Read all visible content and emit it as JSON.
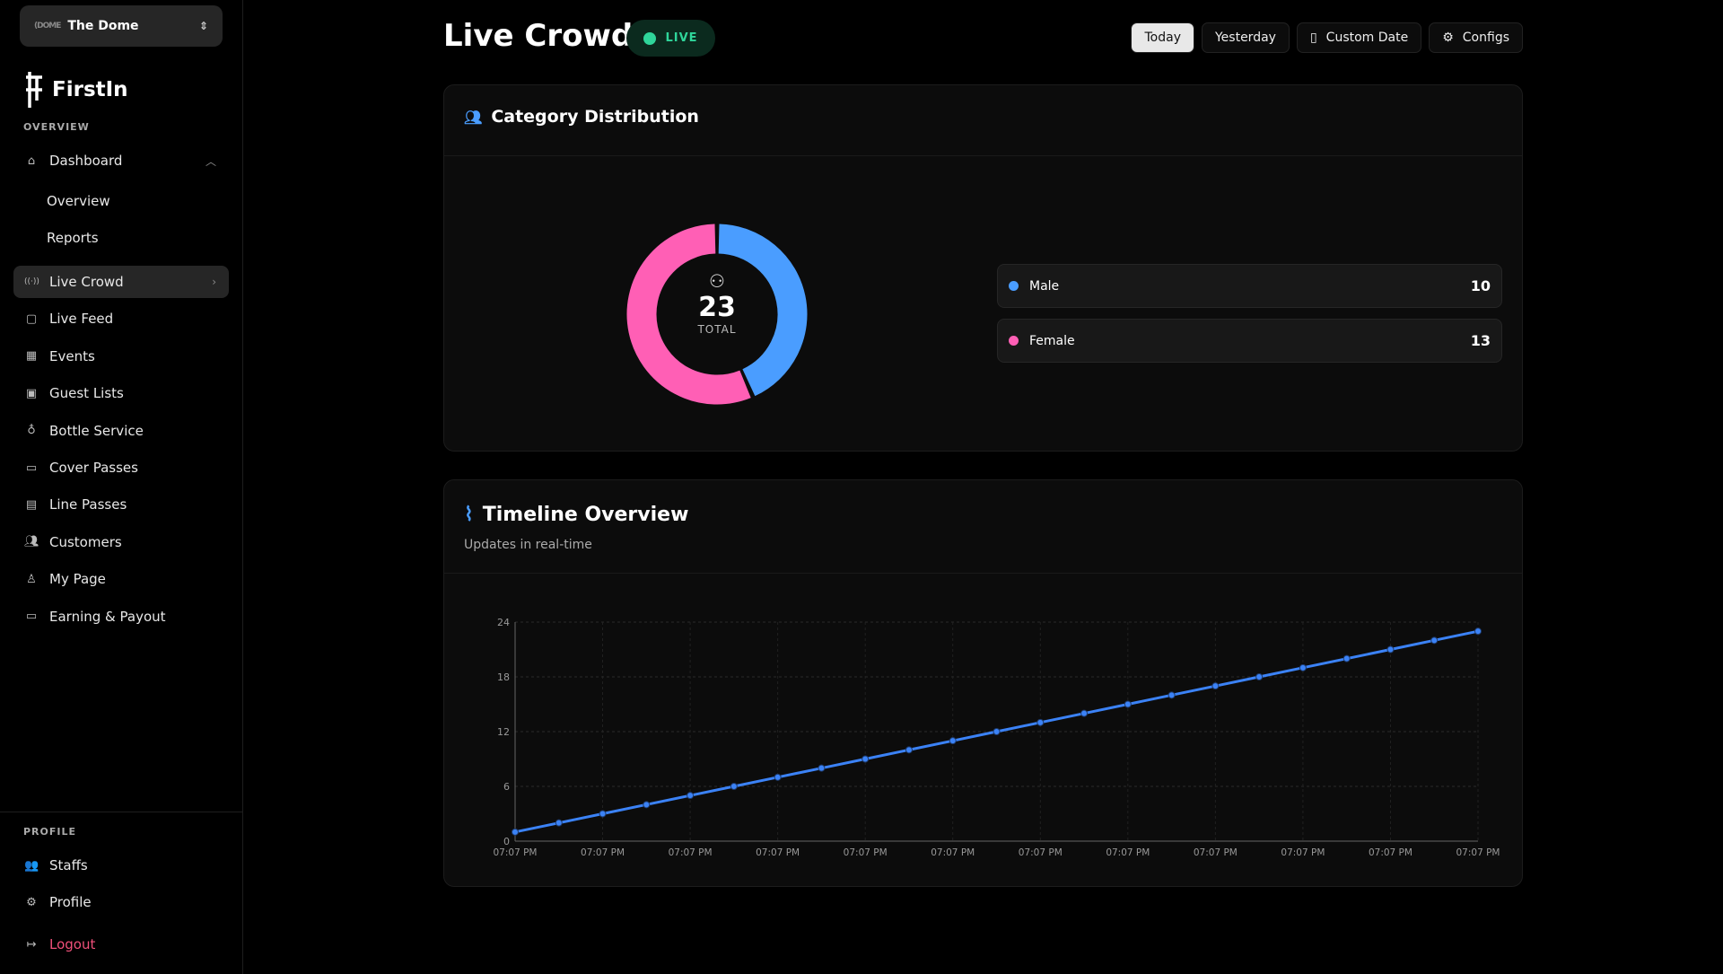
{
  "venue": {
    "logo": "(DOME",
    "name": "The Dome"
  },
  "brand": {
    "name": "FirstIn"
  },
  "sidebar": {
    "overview_label": "OVERVIEW",
    "dashboard": {
      "label": "Dashboard",
      "icon": "home-icon",
      "children": [
        "Overview",
        "Reports"
      ]
    },
    "items": [
      {
        "label": "Live Crowd",
        "icon": "broadcast-icon",
        "active": true
      },
      {
        "label": "Live Feed",
        "icon": "feed-icon"
      },
      {
        "label": "Events",
        "icon": "calendar-icon"
      },
      {
        "label": "Guest Lists",
        "icon": "contact-icon"
      },
      {
        "label": "Bottle Service",
        "icon": "bottle-icon"
      },
      {
        "label": "Cover Passes",
        "icon": "card-icon"
      },
      {
        "label": "Line Passes",
        "icon": "ticket-icon"
      },
      {
        "label": "Customers",
        "icon": "users-icon"
      },
      {
        "label": "My Page",
        "icon": "user-icon"
      },
      {
        "label": "Earning & Payout",
        "icon": "wallet-icon"
      }
    ],
    "profile_label": "PROFILE",
    "profile_items": [
      {
        "label": "Staffs",
        "icon": "users-icon"
      },
      {
        "label": "Profile",
        "icon": "gear-icon"
      }
    ],
    "logout": "Logout"
  },
  "header": {
    "title": "Live Crowd",
    "live_badge": "LIVE",
    "buttons": {
      "today": "Today",
      "yesterday": "Yesterday",
      "custom": "Custom Date",
      "configs": "Configs"
    },
    "selected": "Today"
  },
  "colors": {
    "male": "#4a9dff",
    "female": "#ff5fb5",
    "live": "#2fd59a",
    "line": "#3b82f6"
  },
  "category": {
    "title": "Category Distribution",
    "total": "23",
    "total_label": "TOTAL",
    "items": [
      {
        "label": "Male",
        "value": 10
      },
      {
        "label": "Female",
        "value": 13
      }
    ]
  },
  "timeline": {
    "title": "Timeline Overview",
    "subtitle": "Updates in real-time"
  },
  "chart_data": {
    "type": "line",
    "x": [
      "07:07 PM",
      "07:07 PM",
      "07:07 PM",
      "07:07 PM",
      "07:07 PM",
      "07:07 PM",
      "07:07 PM",
      "07:07 PM",
      "07:07 PM",
      "07:07 PM",
      "07:07 PM",
      "07:07 PM",
      "07:07 PM",
      "07:07 PM",
      "07:07 PM",
      "07:07 PM",
      "07:07 PM",
      "07:07 PM",
      "07:07 PM",
      "07:07 PM",
      "07:07 PM",
      "07:07 PM",
      "07:07 PM"
    ],
    "values": [
      1,
      2,
      3,
      4,
      5,
      6,
      7,
      8,
      9,
      10,
      11,
      12,
      13,
      14,
      15,
      16,
      17,
      18,
      19,
      20,
      21,
      22,
      23
    ],
    "yticks": [
      0,
      6,
      12,
      18,
      24
    ],
    "ylim": [
      0,
      24
    ],
    "grid": true
  }
}
